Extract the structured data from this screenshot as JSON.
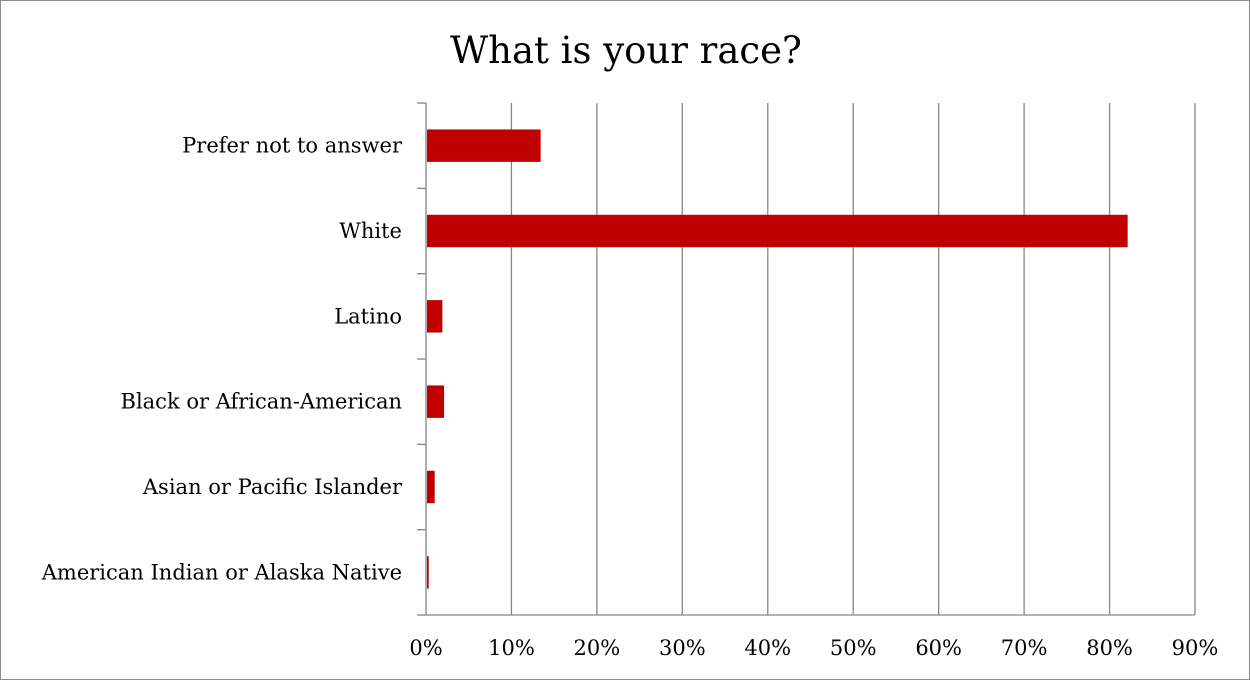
{
  "chart_data": {
    "type": "bar",
    "orientation": "horizontal",
    "title": "What is your race?",
    "xlabel": "",
    "ylabel": "",
    "categories": [
      "Prefer not to answer",
      "White",
      "Latino",
      "Black or African-American",
      "Asian or Pacific Islander",
      "American Indian or Alaska Native"
    ],
    "values": [
      13.3,
      82.0,
      1.8,
      2.0,
      0.9,
      0.2
    ],
    "value_format": "percent",
    "xlim": [
      0,
      90
    ],
    "x_ticks": [
      "0%",
      "10%",
      "20%",
      "30%",
      "40%",
      "50%",
      "60%",
      "70%",
      "80%",
      "90%"
    ],
    "grid": "vertical",
    "legend": "none",
    "bar_color": "#c00000",
    "grid_color": "#868686"
  }
}
